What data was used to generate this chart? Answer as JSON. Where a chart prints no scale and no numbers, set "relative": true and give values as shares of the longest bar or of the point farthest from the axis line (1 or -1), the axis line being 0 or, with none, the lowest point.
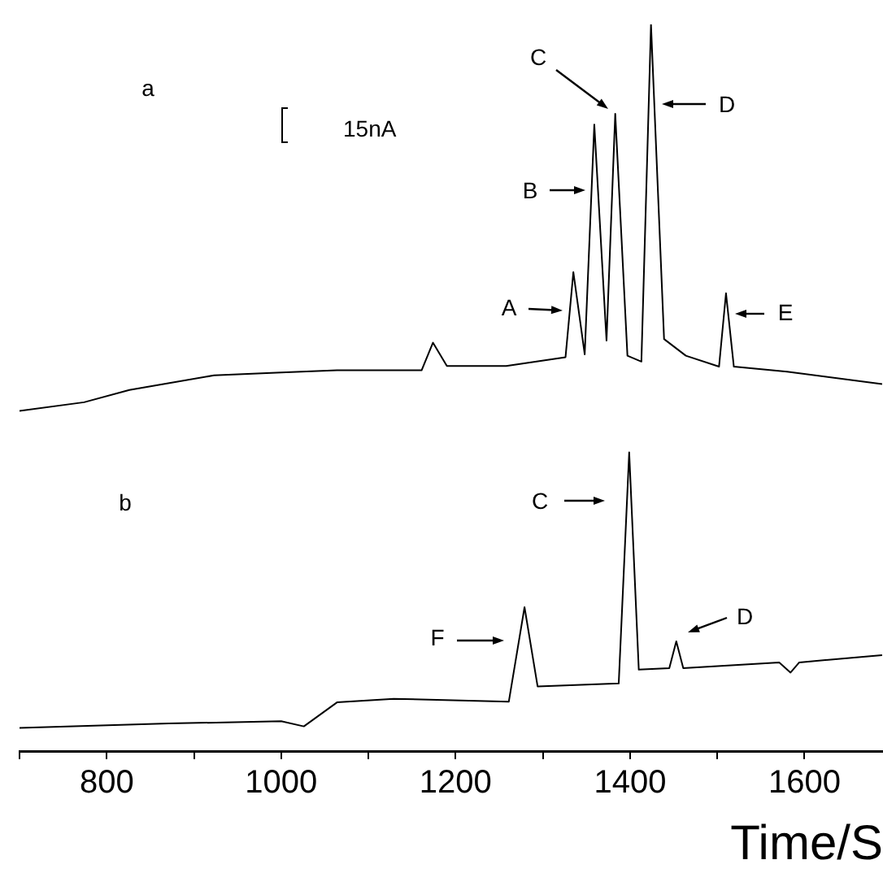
{
  "chart_data": {
    "type": "line",
    "relative": true,
    "xlabel": "Time/S",
    "xlim": [
      700,
      1690
    ],
    "xticks": [
      {
        "value": 700,
        "label": null
      },
      800,
      {
        "value": 900,
        "label": null
      },
      1000,
      {
        "value": 1100,
        "label": null
      },
      1200,
      {
        "value": 1300,
        "label": null
      },
      1400,
      {
        "value": 1500,
        "label": null
      },
      1600
    ],
    "marker": "none",
    "legend": false,
    "grid": false,
    "series": [
      {
        "color": "#000000",
        "x": [
          700,
          774,
          826,
          923,
          1000,
          1064,
          1161,
          1174,
          1190,
          1258,
          1326,
          1335,
          1348,
          1359,
          1373,
          1383,
          1397,
          1413,
          1424,
          1439,
          1464,
          1502,
          1510,
          1519,
          1580,
          1689
        ],
        "values": [
          0.468,
          0.48,
          0.497,
          0.517,
          0.521,
          0.524,
          0.524,
          0.562,
          0.53,
          0.53,
          0.542,
          0.659,
          0.546,
          0.862,
          0.565,
          0.877,
          0.544,
          0.536,
          1.0,
          0.567,
          0.544,
          0.529,
          0.63,
          0.529,
          0.522,
          0.505
        ]
      },
      {
        "color": "#000000",
        "x": [
          700,
          871,
          1000,
          1026,
          1064,
          1129,
          1261,
          1279,
          1294,
          1387,
          1399,
          1410,
          1445,
          1453,
          1461,
          1571,
          1584,
          1594,
          1689
        ],
        "values": [
          0.032,
          0.038,
          0.041,
          0.034,
          0.067,
          0.072,
          0.068,
          0.198,
          0.089,
          0.093,
          0.411,
          0.112,
          0.114,
          0.151,
          0.114,
          0.122,
          0.108,
          0.122,
          0.132
        ]
      }
    ],
    "annotations": [
      "a",
      "b",
      "15nA",
      "A",
      "B",
      "C",
      "D",
      "E",
      "F",
      "C",
      "D"
    ]
  }
}
